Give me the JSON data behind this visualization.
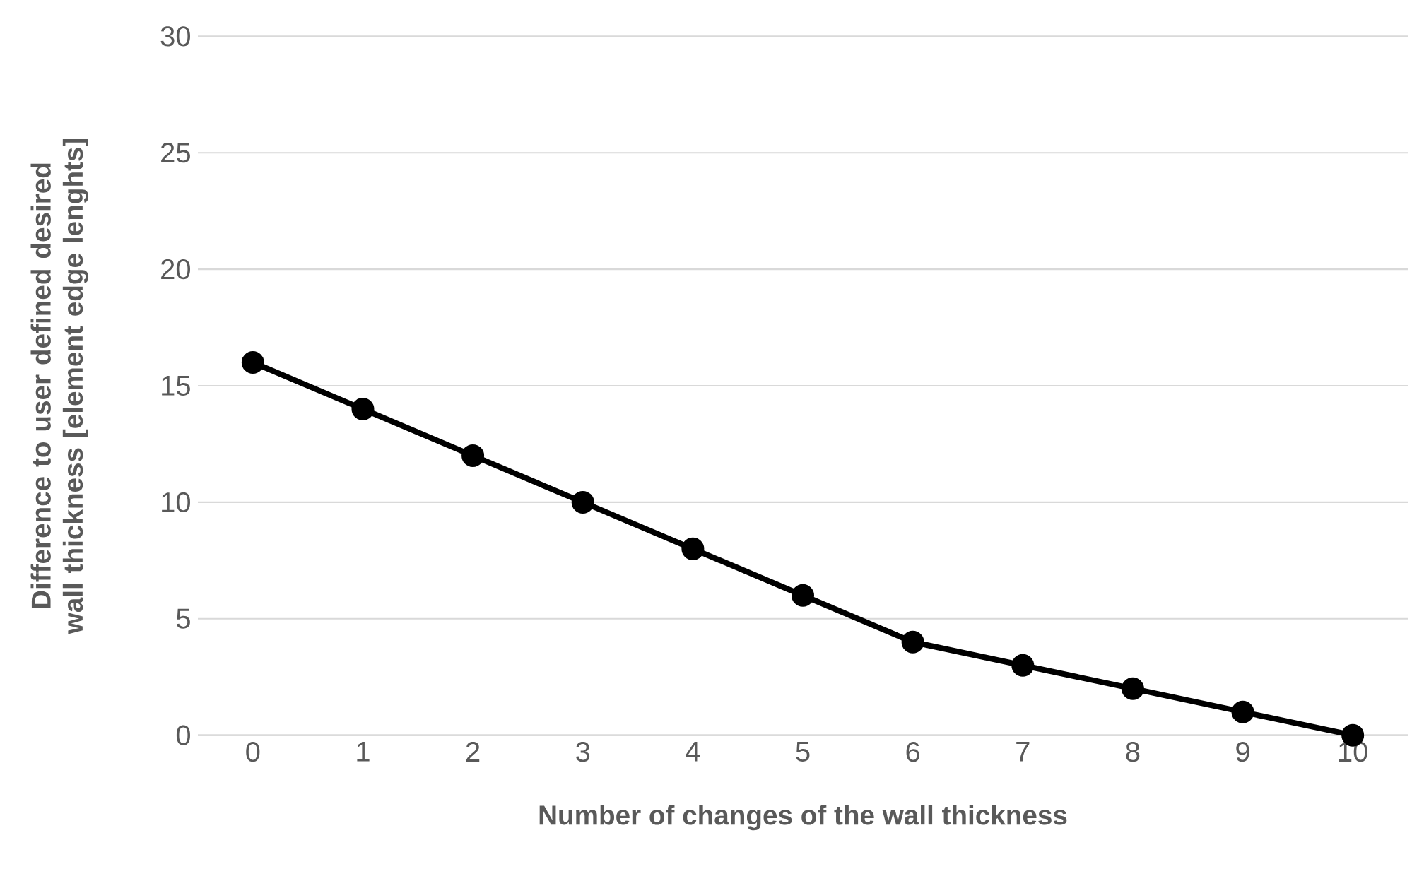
{
  "chart_data": {
    "type": "line",
    "xlabel": "Number of changes of the wall thickness",
    "ylabel": "Difference to user defined desired wall thickness [element edge lenghts]",
    "categories": [
      "0",
      "1",
      "2",
      "3",
      "4",
      "5",
      "6",
      "7",
      "8",
      "9",
      "10"
    ],
    "series": [
      {
        "color": "#000000",
        "values": [
          16,
          14,
          12,
          10,
          8,
          6,
          4,
          3,
          2,
          1,
          0
        ]
      }
    ],
    "ylim": [
      0,
      30
    ],
    "yticks": [
      0,
      5,
      10,
      15,
      20,
      25,
      30
    ],
    "grid": "y",
    "marker": "circle",
    "line_style": "solid"
  }
}
